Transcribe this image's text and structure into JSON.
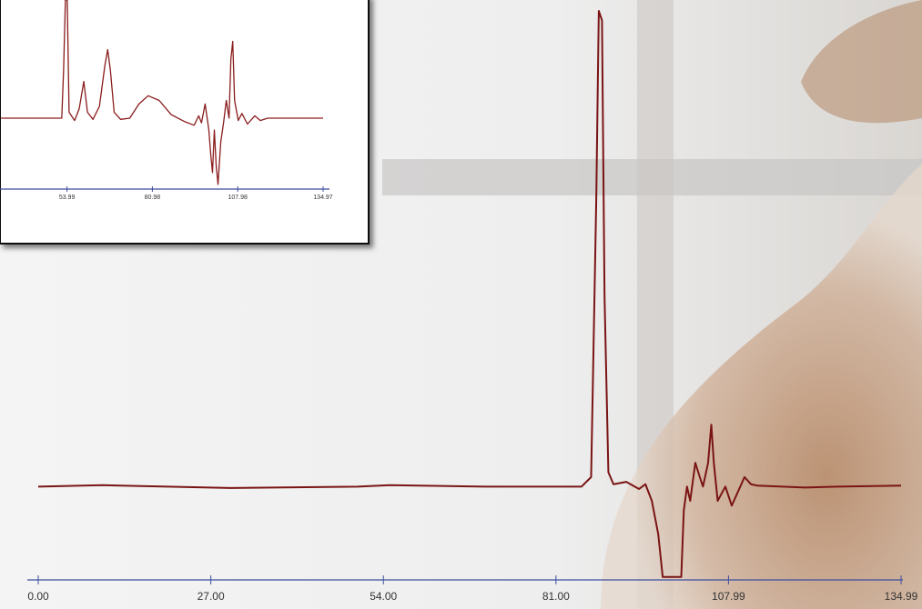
{
  "chart_data": [
    {
      "type": "line",
      "color": "#7a1414",
      "x": [
        0,
        10,
        30,
        50,
        55,
        70,
        85,
        86.5,
        87.3,
        87.7,
        88.2,
        88.6,
        89.2,
        90,
        92,
        94,
        95,
        96,
        97,
        97.7,
        100.6,
        101,
        101.5,
        102,
        102.8,
        103.5,
        104,
        104.8,
        105.3,
        105.7,
        106.3,
        107.5,
        108.5,
        109.5,
        110.5,
        111.5,
        112.5,
        120,
        125,
        134.99
      ],
      "values": [
        0,
        0.3,
        -0.3,
        0,
        0.3,
        0,
        0,
        2,
        60,
        100,
        98,
        40,
        3,
        0.5,
        1,
        -0.5,
        0.5,
        -3,
        -10,
        -19,
        -19,
        -5,
        0,
        -3,
        5,
        2,
        0,
        5,
        13,
        5,
        -3,
        0,
        -4,
        -1,
        2,
        0.5,
        0.2,
        -0.2,
        0,
        0.2
      ],
      "xlim": [
        0,
        134.99
      ],
      "ylim": [
        -20,
        100
      ],
      "xticks": [
        {
          "value": 0,
          "label": "0.00"
        },
        {
          "value": 27,
          "label": "27.00"
        },
        {
          "value": 54,
          "label": "54.00"
        },
        {
          "value": 81,
          "label": "81.00"
        },
        107.99,
        134.99
      ],
      "grid": false
    },
    {
      "type": "line",
      "color": "#8a1c1c",
      "x": [
        33.14,
        52.33,
        52.91,
        53.49,
        54.07,
        54.65,
        56.4,
        57.85,
        59.3,
        60.47,
        62.21,
        64.24,
        65.99,
        66.86,
        67.73,
        68.9,
        70.93,
        73.84,
        76.74,
        79.65,
        83.14,
        86.92,
        91.28,
        94.19,
        95.64,
        96.51,
        97.67,
        98.84,
        99.42,
        100,
        100.58,
        101.16,
        101.74,
        102.62,
        103.49,
        104.36,
        105.23,
        105.81,
        106.4,
        106.98,
        108.14,
        109.3,
        111.05,
        113.37,
        115.12,
        117.44,
        134.97
      ],
      "values": [
        0,
        0,
        40,
        100,
        100,
        5,
        -2,
        8,
        31,
        5,
        -1,
        10,
        45,
        58,
        40,
        5,
        -1,
        0,
        12,
        19,
        15,
        3,
        -3,
        -6,
        2,
        -4,
        12,
        -10,
        -30,
        -46,
        -10,
        -40,
        -56,
        -20,
        -4,
        15,
        0,
        50,
        65,
        15,
        -2,
        4,
        -5,
        2,
        -2,
        0,
        0
      ],
      "xlim": [
        0,
        134.97
      ],
      "ylim": [
        -60,
        100
      ],
      "xticks": [
        53.99,
        80.98,
        107.98,
        134.97
      ],
      "grid": false
    }
  ]
}
